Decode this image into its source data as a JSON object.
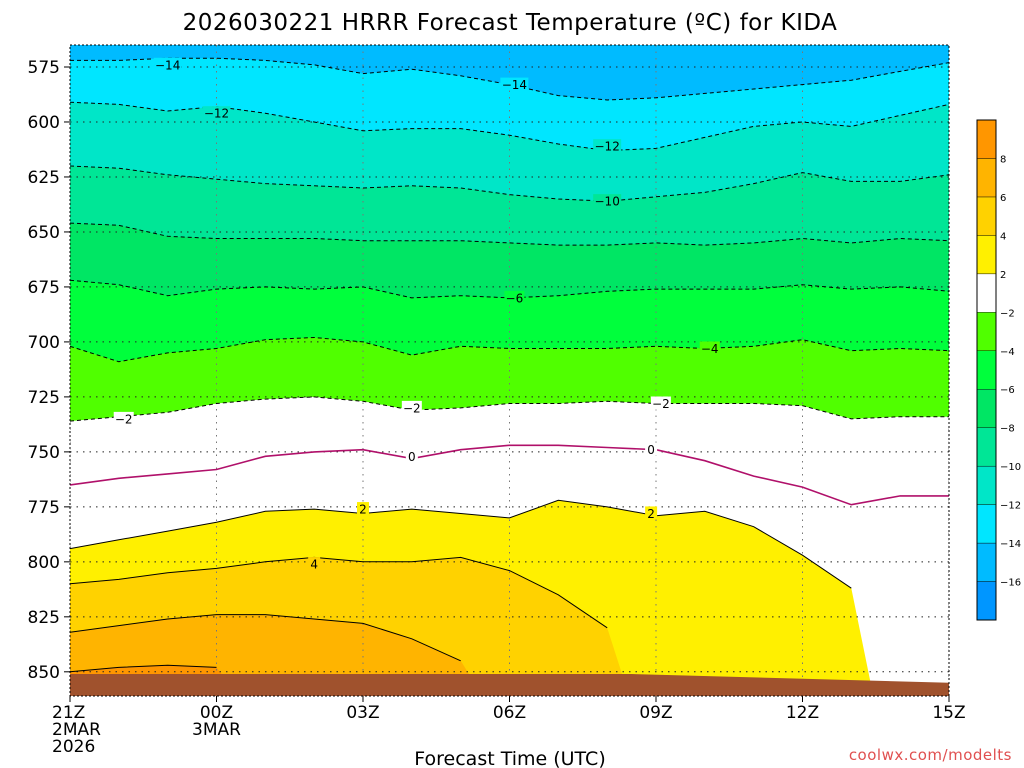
{
  "chart_data": {
    "type": "contour",
    "title": "2026030221 HRRR Forecast Temperature (ºC) for KIDA",
    "xlabel": "Forecast Time (UTC)",
    "ylabel": "",
    "credit": "coolwx.com/modelts",
    "y_axis": {
      "reversed": true,
      "ylim": [
        565,
        861
      ],
      "ticks": [
        575,
        600,
        625,
        650,
        675,
        700,
        725,
        750,
        775,
        800,
        825,
        850
      ]
    },
    "x_axis": {
      "xlim": [
        0,
        18
      ],
      "ticks": [
        {
          "x": 0,
          "lines": [
            "21Z",
            "2MAR",
            "2026"
          ]
        },
        {
          "x": 3,
          "lines": [
            "00Z",
            "3MAR"
          ]
        },
        {
          "x": 6,
          "lines": [
            "03Z"
          ]
        },
        {
          "x": 9,
          "lines": [
            "06Z"
          ]
        },
        {
          "x": 12,
          "lines": [
            "09Z"
          ]
        },
        {
          "x": 15,
          "lines": [
            "12Z"
          ]
        },
        {
          "x": 18,
          "lines": [
            "15Z"
          ]
        }
      ]
    },
    "grid": true,
    "x_hours": [
      0,
      1,
      2,
      3,
      4,
      5,
      6,
      7,
      8,
      9,
      10,
      11,
      12,
      13,
      14,
      15,
      16,
      17,
      18
    ],
    "isotherms": [
      {
        "value": -14,
        "p": [
          572,
          572,
          571,
          571,
          572,
          574,
          578,
          576,
          579,
          583,
          588,
          590,
          589,
          587,
          585,
          583,
          581,
          577,
          573
        ]
      },
      {
        "value": -12,
        "p": [
          591,
          592,
          595,
          593,
          596,
          600,
          604,
          603,
          603,
          606,
          610,
          613,
          612,
          607,
          602,
          600,
          602,
          597,
          592
        ]
      },
      {
        "value": -10,
        "p": [
          620,
          621,
          624,
          626,
          628,
          629,
          630,
          629,
          630,
          633,
          635,
          636,
          634,
          632,
          628,
          623,
          627,
          627,
          624
        ]
      },
      {
        "value": -8,
        "p": [
          646,
          647,
          652,
          653,
          653,
          653,
          654,
          654,
          654,
          655,
          656,
          656,
          655,
          656,
          655,
          653,
          655,
          653,
          654
        ]
      },
      {
        "value": -6,
        "p": [
          672,
          674,
          679,
          676,
          675,
          676,
          675,
          680,
          679,
          680,
          679,
          677,
          676,
          676,
          676,
          674,
          676,
          675,
          677
        ]
      },
      {
        "value": -4,
        "p": [
          702,
          709,
          705,
          703,
          699,
          698,
          700,
          706,
          702,
          703,
          703,
          703,
          702,
          703,
          702,
          699,
          704,
          703,
          704
        ]
      },
      {
        "value": -2,
        "p": [
          736,
          734,
          732,
          728,
          726,
          725,
          727,
          731,
          730,
          728,
          728,
          727,
          728,
          728,
          728,
          729,
          735,
          734,
          734
        ]
      },
      {
        "value": 0,
        "p": [
          765,
          762,
          760,
          758,
          752,
          750,
          749,
          753,
          749,
          747,
          747,
          748,
          749,
          754,
          761,
          766,
          774,
          770,
          770
        ]
      },
      {
        "value": 2,
        "p": [
          794,
          790,
          786,
          782,
          777,
          776,
          778,
          776,
          778,
          780,
          772,
          775,
          779,
          777,
          784,
          797,
          812,
          null,
          null
        ]
      },
      {
        "value": 4,
        "p": [
          810,
          808,
          805,
          803,
          800,
          798,
          800,
          800,
          798,
          804,
          815,
          830,
          null,
          null,
          null,
          null,
          null,
          null,
          null
        ]
      },
      {
        "value": 6,
        "p": [
          832,
          829,
          826,
          824,
          824,
          826,
          828,
          835,
          845,
          null,
          null,
          null,
          null,
          null,
          null,
          null,
          null,
          null,
          null
        ]
      },
      {
        "value": 8,
        "p": [
          850,
          848,
          847,
          848,
          null,
          null,
          null,
          null,
          null,
          null,
          null,
          null,
          null,
          null,
          null,
          null,
          null,
          null,
          null
        ]
      }
    ],
    "contour_labels": [
      {
        "x": 2.0,
        "p": 574,
        "text": "-14"
      },
      {
        "x": 9.1,
        "p": 583,
        "text": "-14"
      },
      {
        "x": 3.0,
        "p": 596,
        "text": "-12"
      },
      {
        "x": 11.0,
        "p": 611,
        "text": "-12"
      },
      {
        "x": 11.0,
        "p": 636,
        "text": "-10"
      },
      {
        "x": 9.1,
        "p": 680,
        "text": "-6"
      },
      {
        "x": 13.1,
        "p": 703,
        "text": "-4"
      },
      {
        "x": 1.1,
        "p": 735,
        "text": "-2"
      },
      {
        "x": 7.0,
        "p": 730,
        "text": "-2"
      },
      {
        "x": 12.1,
        "p": 728,
        "text": "-2"
      },
      {
        "x": 7.0,
        "p": 752,
        "text": "0"
      },
      {
        "x": 11.9,
        "p": 749,
        "text": "0"
      },
      {
        "x": 6.0,
        "p": 776,
        "text": "2"
      },
      {
        "x": 11.9,
        "p": 778,
        "text": "2"
      },
      {
        "x": 5.0,
        "p": 801,
        "text": "4"
      }
    ],
    "ground_top_p": 851,
    "ground_right_p": 855,
    "colorbar": {
      "levels": [
        -16,
        -14,
        -12,
        -10,
        -8,
        -6,
        -4,
        -2,
        2,
        4,
        6,
        8
      ],
      "colors": [
        "#0096ff",
        "#00bbff",
        "#00e6ff",
        "#00e6c8",
        "#00e696",
        "#00e664",
        "#00ff3c",
        "#50ff00",
        "#ffffff",
        "#fff000",
        "#ffd200",
        "#ffb400",
        "#ff9600"
      ]
    }
  }
}
